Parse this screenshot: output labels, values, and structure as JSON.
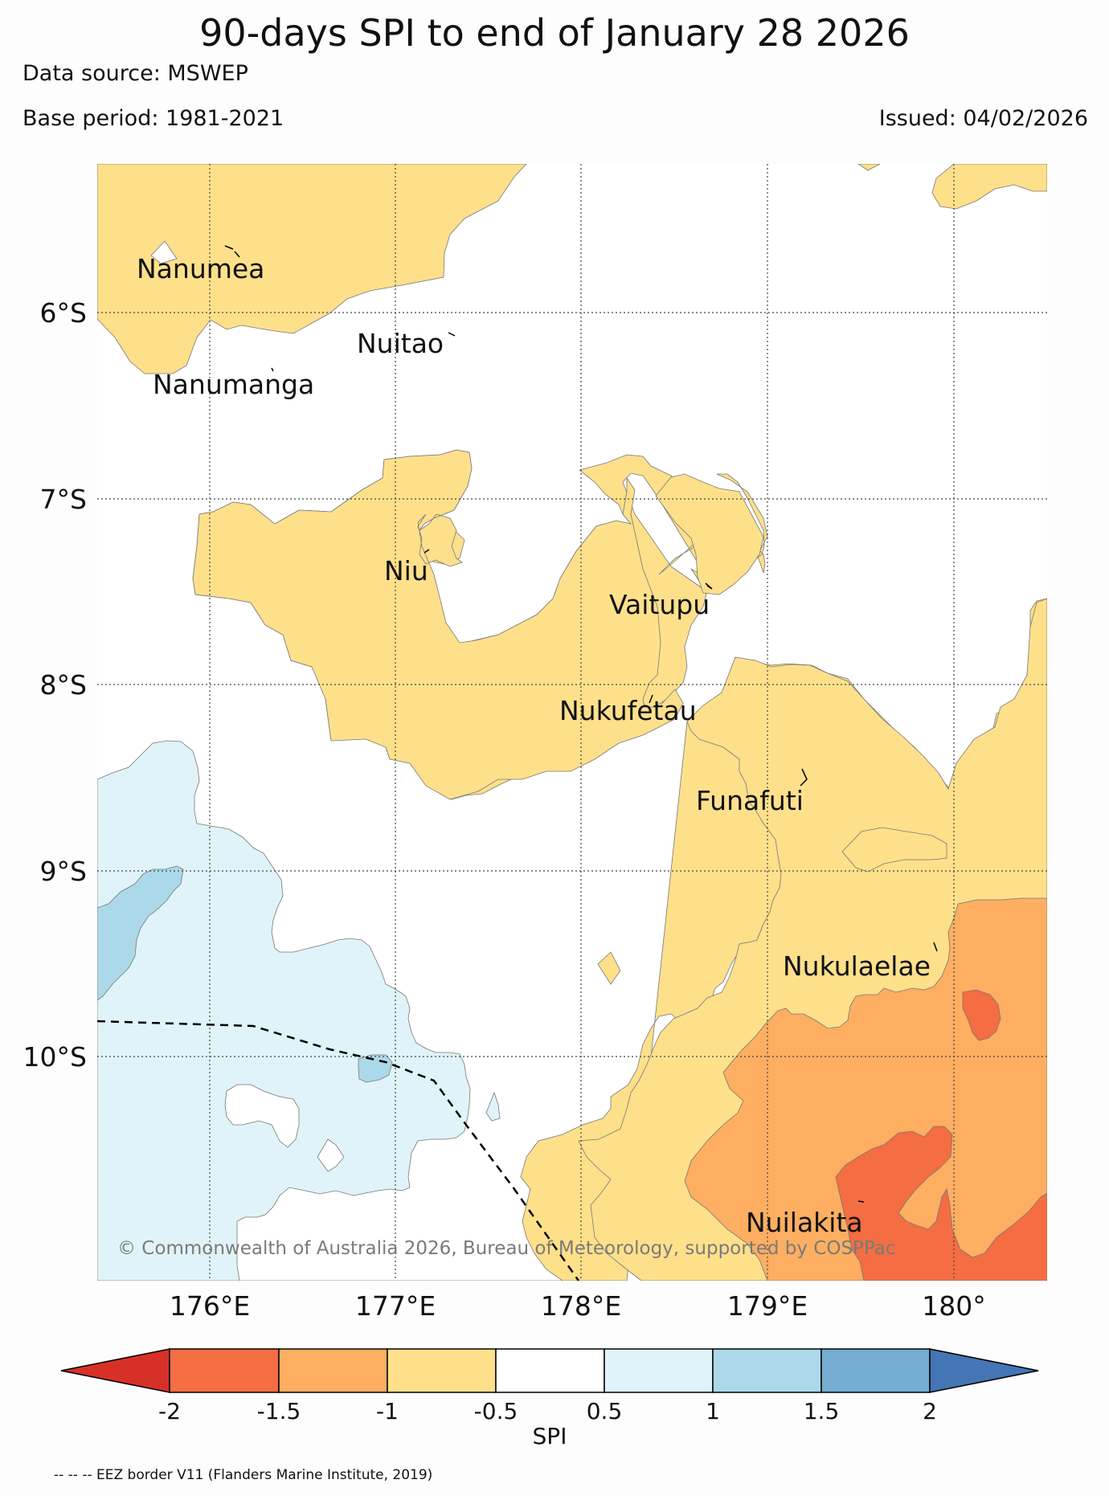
{
  "header": {
    "title": "90-days SPI to end of January 28 2026",
    "data_source": "Data source: MSWEP",
    "base_period": "Base period: 1981-2021",
    "issued": "Issued: 04/02/2026"
  },
  "map": {
    "lat_labels": [
      "6°S",
      "7°S",
      "8°S",
      "9°S",
      "10°S"
    ],
    "lon_labels": [
      "176°E",
      "177°E",
      "178°E",
      "179°E",
      "180°"
    ],
    "places": [
      {
        "name": "Nanumea"
      },
      {
        "name": "Nuitao"
      },
      {
        "name": "Nanumanga"
      },
      {
        "name": "Niu"
      },
      {
        "name": "Vaitupu"
      },
      {
        "name": "Nukufetau"
      },
      {
        "name": "Funafuti"
      },
      {
        "name": "Nukulaelae"
      },
      {
        "name": "Nuilakita"
      }
    ],
    "copyright": "© Commonwealth of Australia 2026, Bureau of Meteorology, supported by COSPPac"
  },
  "colorbar": {
    "ticks": [
      "-2",
      "-1.5",
      "-1",
      "-0.5",
      "0.5",
      "1",
      "1.5",
      "2"
    ],
    "label": "SPI",
    "colors": {
      "lt_m2": "#d73027",
      "m2_m15": "#f46d43",
      "m15_m1": "#fdae61",
      "m1_m05": "#fee08b",
      "m05_05": "#ffffff",
      "p05_1": "#e0f3f8",
      "p1_15": "#abd9e9",
      "p15_2": "#74add1",
      "gt_2": "#4575b4"
    }
  },
  "footnote": "-- -- -- EEZ border V11 (Flanders Marine Institute, 2019)"
}
